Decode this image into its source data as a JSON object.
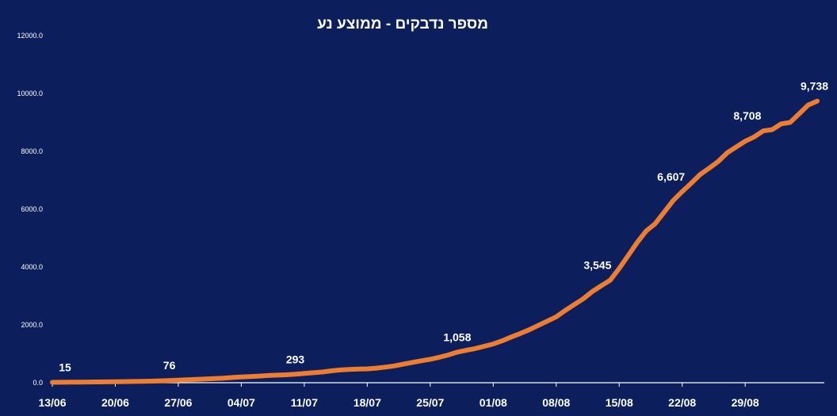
{
  "chart_data": {
    "type": "line",
    "title": "מספר נדבקים - ממוצע נע",
    "xlabel": "",
    "ylabel": "",
    "ylim": [
      0,
      12000
    ],
    "yticks": [
      "0.0",
      "2000.0",
      "4000.0",
      "6000.0",
      "8000.0",
      "10000.0",
      "12000.0"
    ],
    "xtick_labels": [
      "13/06",
      "20/06",
      "27/06",
      "04/07",
      "11/07",
      "18/07",
      "25/07",
      "01/08",
      "08/08",
      "15/08",
      "22/08",
      "29/08"
    ],
    "grid": false,
    "legend": "none",
    "colors": {
      "background": "#0c1f5c",
      "line": "#ed7d31",
      "text": "#ffffff"
    },
    "series": [
      {
        "values": [
          15,
          17,
          19,
          21,
          24,
          27,
          30,
          34,
          38,
          43,
          48,
          55,
          65,
          76,
          90,
          105,
          118,
          130,
          142,
          160,
          180,
          198,
          215,
          230,
          248,
          262,
          275,
          293,
          320,
          345,
          370,
          410,
          440,
          460,
          470,
          480,
          505,
          540,
          580,
          640,
          700,
          760,
          810,
          880,
          960,
          1058,
          1120,
          1180,
          1260,
          1340,
          1450,
          1580,
          1700,
          1830,
          1980,
          2130,
          2280,
          2500,
          2700,
          2900,
          3150,
          3350,
          3545,
          3950,
          4400,
          4850,
          5250,
          5500,
          5900,
          6300,
          6607,
          6900,
          7200,
          7420,
          7650,
          7950,
          8150,
          8350,
          8500,
          8708,
          8750,
          8950,
          9000,
          9300,
          9600,
          9738
        ]
      }
    ],
    "data_labels": [
      {
        "index": 0,
        "text": "15"
      },
      {
        "index": 13,
        "text": "76"
      },
      {
        "index": 27,
        "text": "293"
      },
      {
        "index": 45,
        "text": "1,058"
      },
      {
        "index": 62,
        "text": "3,545"
      },
      {
        "index": 70,
        "text": "6,607"
      },
      {
        "index": 79,
        "text": "8,708"
      },
      {
        "index": 85,
        "text": "9,738"
      }
    ]
  }
}
